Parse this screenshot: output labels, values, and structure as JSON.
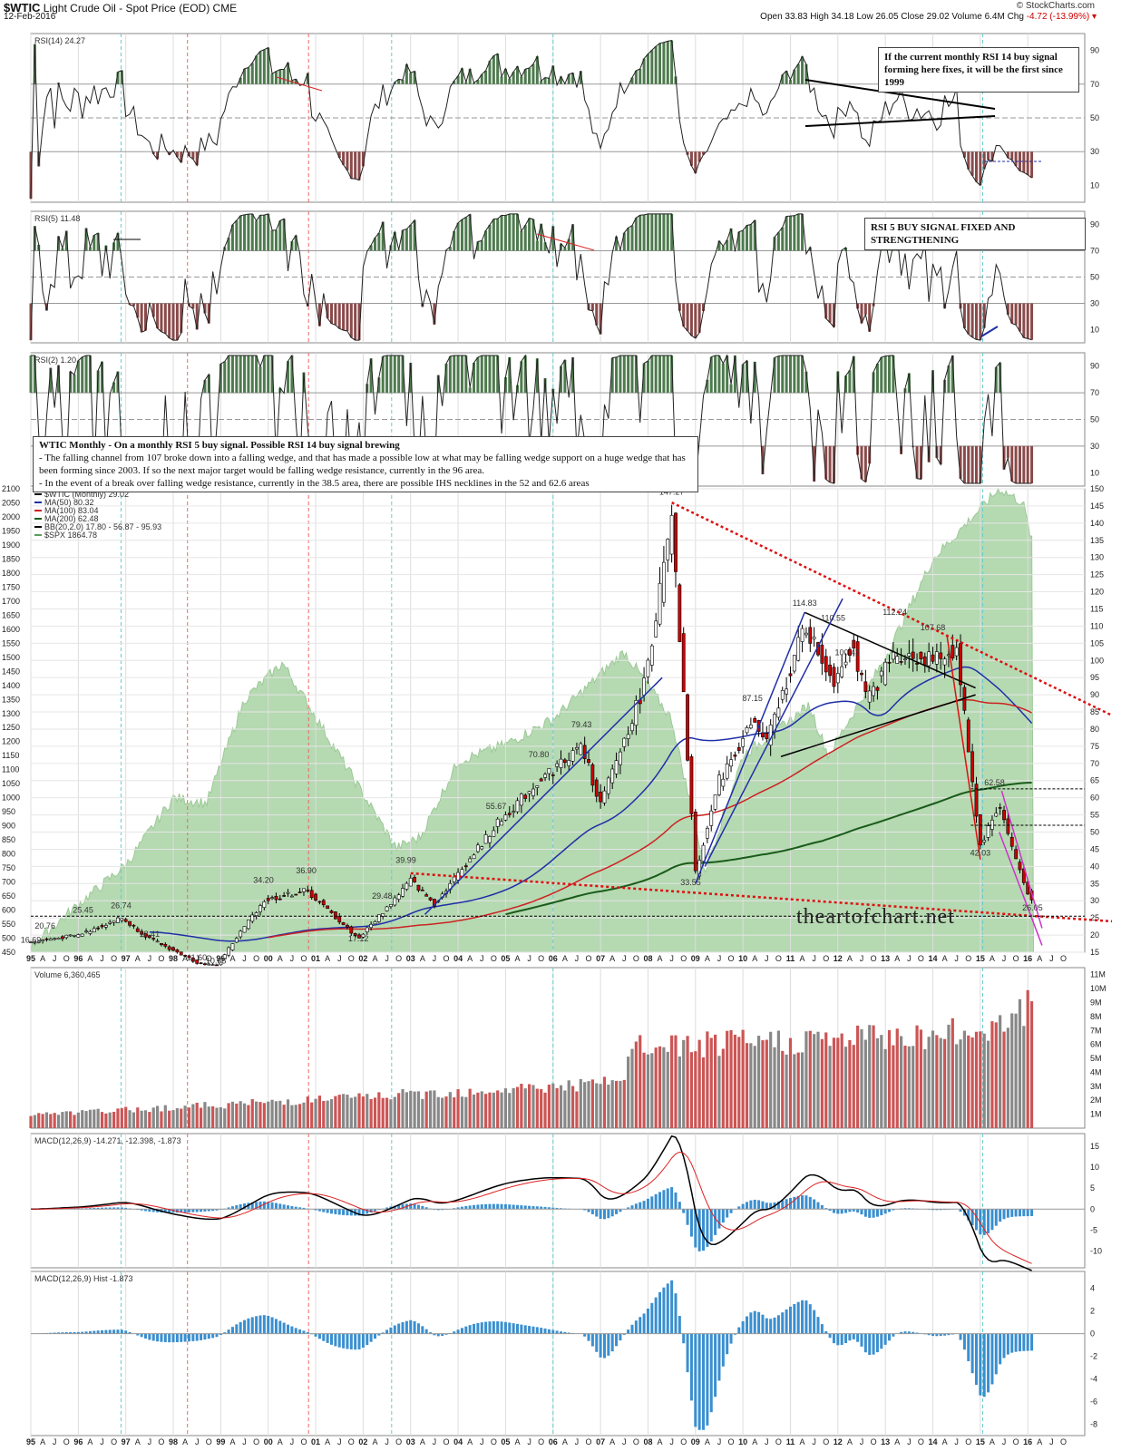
{
  "header": {
    "symbol": "$WTIC",
    "description": "Light Crude Oil - Spot Price (EOD) CME",
    "date": "12-Feb-2016",
    "brand": "© StockCharts.com",
    "ohlc": "Open 33.83  High 34.18  Low 26.05  Close 29.02  Volume 6.4M  Chg",
    "change": "-4.72 (-13.99%) ▾"
  },
  "panels": {
    "rsi14": {
      "label": "RSI(14) 24.27",
      "ticks": [
        "90",
        "70",
        "50",
        "30",
        "10"
      ]
    },
    "rsi5": {
      "label": "RSI(5) 11.48",
      "ticks": [
        "90",
        "70",
        "50",
        "30",
        "10"
      ]
    },
    "rsi2": {
      "label": "RSI(2) 1.20",
      "ticks": [
        "90",
        "70",
        "50",
        "30",
        "10"
      ]
    },
    "volume": {
      "label": "Volume 6,360,465",
      "ticks": [
        "11M",
        "10M",
        "9M",
        "8M",
        "7M",
        "6M",
        "5M",
        "4M",
        "3M",
        "2M",
        "1M"
      ]
    },
    "macd": {
      "label": "MACD(12,26,9) -14.271, -12.398, -1.873",
      "ticks": [
        "15",
        "10",
        "5",
        "0",
        "-5",
        "-10"
      ]
    },
    "hist": {
      "label": "MACD(12,26,9) Hist -1.873",
      "ticks": [
        "4",
        "2",
        "0",
        "-2",
        "-4",
        "-6",
        "-8"
      ]
    }
  },
  "notes": {
    "rsi14_note": "If the current monthly RSI 14 buy signal forming here fixes, it will be the first since 1999",
    "rsi5_note": "RSI 5 BUY SIGNAL FIXED AND STRENGTHENING",
    "main_title": "WTIC Monthly - On a monthly RSI 5 buy signal. Possible RSI 14 buy signal brewing",
    "main_l1": "- The falling channel from 107 broke down into a falling wedge, and that has made a possible low at what may be falling wedge support on a huge wedge that has been forming since 2003. If so the next major target would be falling wedge resistance, currently in the 96 area.",
    "main_l2": "- In the event of a break over falling wedge resistance, currently in the 38.5 area, there are possible IHS necklines in the 52 and 62.6 areas"
  },
  "legend": [
    {
      "text": "$WTIC (Monthly) 29.02",
      "color": "#000000"
    },
    {
      "text": "MA(50) 80.32",
      "color": "#1f2fa8"
    },
    {
      "text": "MA(100) 83.04",
      "color": "#cc2222"
    },
    {
      "text": "MA(200) 62.48",
      "color": "#1a5c1a"
    },
    {
      "text": "BB(20,2.0) 17.80 - 56.87 - 95.93",
      "color": "#000000"
    },
    {
      "text": "$SPX 1864.78",
      "color": "#5a9e5a"
    }
  ],
  "watermark": "theartofchart.net",
  "colors": {
    "price_up": "#ffffff",
    "price_down": "#cc0000",
    "spx_fill": "#a9d3a4",
    "ma50": "#1f2fa8",
    "ma100": "#cc2222",
    "ma200": "#1a5c1a",
    "vol_up": "#888888",
    "vol_down": "#cc5555",
    "macd_hist": "#3a8fd0",
    "rsi_over": "#4e7a4e",
    "rsi_under": "#8a4a4a"
  },
  "chart_data": {
    "type": "line",
    "title": "WTIC Monthly",
    "x_labels": [
      "95",
      "96",
      "97",
      "98",
      "99",
      "00",
      "01",
      "02",
      "03",
      "04",
      "05",
      "06",
      "07",
      "08",
      "09",
      "10",
      "11",
      "12",
      "13",
      "14",
      "15",
      "16"
    ],
    "left_axis_spx": [
      "2100",
      "2050",
      "2000",
      "1950",
      "1900",
      "1850",
      "1800",
      "1750",
      "1700",
      "1650",
      "1600",
      "1550",
      "1500",
      "1450",
      "1400",
      "1350",
      "1300",
      "1250",
      "1200",
      "1150",
      "1100",
      "1050",
      "1000",
      "950",
      "900",
      "850",
      "800",
      "750",
      "700",
      "650",
      "600",
      "550",
      "500",
      "450"
    ],
    "right_axis_wtic": [
      "150",
      "145",
      "140",
      "135",
      "130",
      "125",
      "120",
      "115",
      "110",
      "105",
      "100",
      "95",
      "90",
      "85",
      "80",
      "75",
      "70",
      "65",
      "60",
      "55",
      "50",
      "45",
      "40",
      "35",
      "30",
      "25",
      "20",
      "15"
    ],
    "price_annotations": [
      {
        "label": "20.76",
        "year": 1995.3
      },
      {
        "label": "16.69",
        "year": 1995.0
      },
      {
        "label": "25.45",
        "year": 1996.1
      },
      {
        "label": "26.74",
        "year": 1996.9
      },
      {
        "label": "18.41",
        "year": 1997.5
      },
      {
        "label": "11.60",
        "year": 1998.5
      },
      {
        "label": "10.65",
        "year": 1998.9
      },
      {
        "label": "34.20",
        "year": 1999.9
      },
      {
        "label": "36.90",
        "year": 2000.8
      },
      {
        "label": "17.12",
        "year": 2001.9
      },
      {
        "label": "29.48",
        "year": 2002.4
      },
      {
        "label": "39.99",
        "year": 2002.9
      },
      {
        "label": "55.67",
        "year": 2004.8
      },
      {
        "label": "70.80",
        "year": 2005.7
      },
      {
        "label": "79.43",
        "year": 2006.6
      },
      {
        "label": "147.27",
        "year": 2008.5
      },
      {
        "label": "33.55",
        "year": 2008.9
      },
      {
        "label": "87.15",
        "year": 2010.2
      },
      {
        "label": "114.83",
        "year": 2011.3
      },
      {
        "label": "110.55",
        "year": 2011.9
      },
      {
        "label": "100.42",
        "year": 2012.2
      },
      {
        "label": "112.24",
        "year": 2013.2
      },
      {
        "label": "107.68",
        "year": 2014.0
      },
      {
        "label": "42.03",
        "year": 2015.0
      },
      {
        "label": "62.58",
        "year": 2015.3
      },
      {
        "label": "26.05",
        "year": 2016.1
      }
    ],
    "series": [
      {
        "name": "$WTIC (Monthly)",
        "years": [
          1995,
          1996,
          1997,
          1998,
          1999,
          2000,
          2001,
          2002,
          2003,
          2004,
          2005,
          2006,
          2007,
          2008.5,
          2009,
          2010,
          2011.3,
          2012,
          2013,
          2014,
          2014.5,
          2015,
          2015.4,
          2016.1
        ],
        "values": [
          18,
          20,
          23,
          13,
          14,
          30,
          22,
          20,
          31,
          40,
          55,
          65,
          80,
          147.27,
          38,
          78,
          114.83,
          95,
          93,
          100,
          105,
          45,
          58,
          29.02
        ]
      }
    ]
  }
}
